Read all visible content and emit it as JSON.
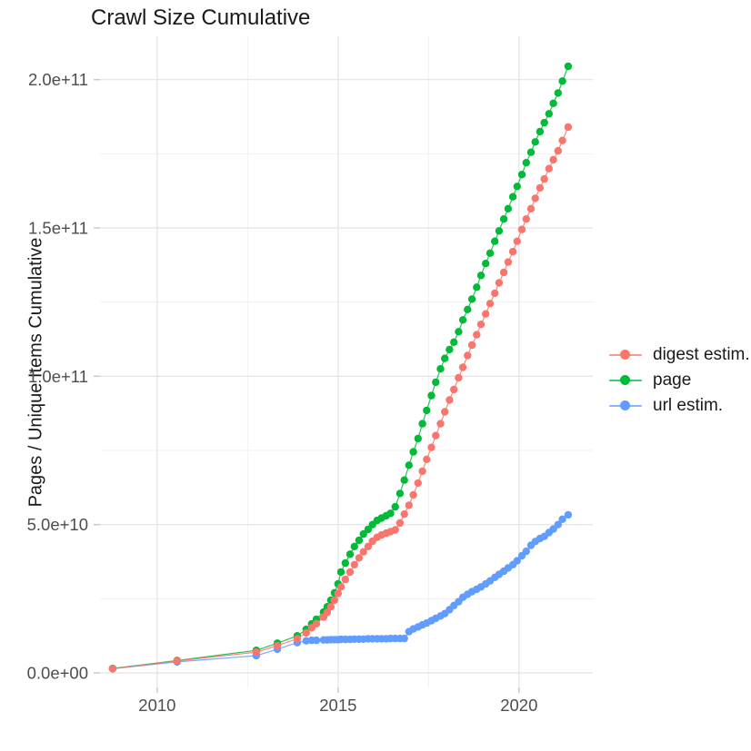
{
  "title": "Crawl Size Cumulative",
  "colors": {
    "digest": "#F8766D",
    "page": "#00BA38",
    "url": "#619CFF",
    "grid_major": "#e3e3e3",
    "grid_minor": "#f1f1f1",
    "tick_mark": "#c9c9c9",
    "tick_text": "#4d4d4d",
    "title_text": "#1a1a1a"
  },
  "chart_data": {
    "type": "line",
    "title": "Crawl Size Cumulative",
    "xlabel": "",
    "ylabel": "Pages / Unique Items Cumulative",
    "unit_note": "point values stored as [year, billions_of_items]; 50 = 5.0e+10",
    "grid": true,
    "legend_position": "right",
    "x_axis": {
      "ticks": [
        2010,
        2015,
        2020
      ],
      "tick_labels": [
        "2010",
        "2015",
        "2020"
      ],
      "minor_ticks": [
        2012.5,
        2017.5
      ],
      "range": [
        2008.42,
        2022.04
      ]
    },
    "y_axis": {
      "ticks_e9": [
        0,
        50,
        100,
        150,
        200
      ],
      "tick_labels": [
        "0.0e+00",
        "5.0e+10",
        "1.0e+11",
        "1.5e+11",
        "2.0e+11"
      ],
      "minor_ticks_e9": [
        25,
        75,
        125,
        175
      ],
      "range_e9": [
        -4.9,
        214.6
      ]
    },
    "draw_order": [
      "url estim.",
      "page",
      "digest estim."
    ],
    "series": [
      {
        "name": "digest estim.",
        "color": "#F8766D",
        "points": [
          [
            2008.77,
            1.4
          ],
          [
            2010.55,
            4.0
          ],
          [
            2012.74,
            7.0
          ],
          [
            2013.32,
            9.2
          ],
          [
            2013.87,
            11.5
          ],
          [
            2014.12,
            13.5
          ],
          [
            2014.27,
            15.2
          ],
          [
            2014.4,
            16.6
          ],
          [
            2014.6,
            18.8
          ],
          [
            2014.7,
            20.4
          ],
          [
            2014.8,
            22.3
          ],
          [
            2014.9,
            24.5
          ],
          [
            2015.0,
            26.8
          ],
          [
            2015.08,
            29
          ],
          [
            2015.2,
            31.5
          ],
          [
            2015.33,
            34
          ],
          [
            2015.45,
            36.5
          ],
          [
            2015.58,
            38.8
          ],
          [
            2015.7,
            40.8
          ],
          [
            2015.83,
            42.6
          ],
          [
            2015.95,
            44.4
          ],
          [
            2016.08,
            45.7
          ],
          [
            2016.2,
            46.5
          ],
          [
            2016.33,
            47.1
          ],
          [
            2016.45,
            47.6
          ],
          [
            2016.58,
            48.2
          ],
          [
            2016.71,
            50.5
          ],
          [
            2016.83,
            53.5
          ],
          [
            2016.96,
            56.5
          ],
          [
            2017.08,
            60
          ],
          [
            2017.21,
            64
          ],
          [
            2017.33,
            68
          ],
          [
            2017.45,
            72
          ],
          [
            2017.58,
            76
          ],
          [
            2017.7,
            80
          ],
          [
            2017.83,
            84
          ],
          [
            2017.95,
            88
          ],
          [
            2018.08,
            92
          ],
          [
            2018.2,
            95.5
          ],
          [
            2018.33,
            99.5
          ],
          [
            2018.45,
            103
          ],
          [
            2018.58,
            107
          ],
          [
            2018.7,
            110.5
          ],
          [
            2018.83,
            114
          ],
          [
            2018.95,
            117.5
          ],
          [
            2019.08,
            121
          ],
          [
            2019.2,
            124.5
          ],
          [
            2019.33,
            128
          ],
          [
            2019.45,
            131.5
          ],
          [
            2019.58,
            135
          ],
          [
            2019.7,
            138.5
          ],
          [
            2019.83,
            142
          ],
          [
            2019.95,
            145.5
          ],
          [
            2020.08,
            149.5
          ],
          [
            2020.2,
            153
          ],
          [
            2020.33,
            156.5
          ],
          [
            2020.45,
            160
          ],
          [
            2020.58,
            163.5
          ],
          [
            2020.7,
            166.5
          ],
          [
            2020.83,
            170
          ],
          [
            2020.95,
            173
          ],
          [
            2021.08,
            176
          ],
          [
            2021.2,
            179.5
          ],
          [
            2021.36,
            184
          ]
        ]
      },
      {
        "name": "page",
        "color": "#00BA38",
        "points": [
          [
            2008.77,
            1.5
          ],
          [
            2010.55,
            4.2
          ],
          [
            2012.74,
            7.6
          ],
          [
            2013.32,
            10
          ],
          [
            2013.87,
            12.5
          ],
          [
            2014.12,
            14.7
          ],
          [
            2014.27,
            16.5
          ],
          [
            2014.4,
            18.1
          ],
          [
            2014.6,
            20.5
          ],
          [
            2014.7,
            22.3
          ],
          [
            2014.8,
            24.5
          ],
          [
            2014.9,
            27
          ],
          [
            2015.0,
            30
          ],
          [
            2015.08,
            34
          ],
          [
            2015.2,
            37
          ],
          [
            2015.33,
            40
          ],
          [
            2015.45,
            42.6
          ],
          [
            2015.58,
            44.7
          ],
          [
            2015.7,
            46.8
          ],
          [
            2015.83,
            48.4
          ],
          [
            2015.95,
            50
          ],
          [
            2016.08,
            51.4
          ],
          [
            2016.2,
            52.2
          ],
          [
            2016.33,
            53
          ],
          [
            2016.45,
            53.8
          ],
          [
            2016.58,
            56
          ],
          [
            2016.71,
            60.5
          ],
          [
            2016.83,
            65
          ],
          [
            2016.96,
            70
          ],
          [
            2017.08,
            74.5
          ],
          [
            2017.21,
            79
          ],
          [
            2017.33,
            84
          ],
          [
            2017.45,
            88.5
          ],
          [
            2017.58,
            93.5
          ],
          [
            2017.7,
            98
          ],
          [
            2017.83,
            102.5
          ],
          [
            2017.95,
            106
          ],
          [
            2018.08,
            109
          ],
          [
            2018.2,
            111.5
          ],
          [
            2018.33,
            115
          ],
          [
            2018.45,
            119
          ],
          [
            2018.58,
            122.5
          ],
          [
            2018.7,
            126
          ],
          [
            2018.83,
            130
          ],
          [
            2018.95,
            134
          ],
          [
            2019.08,
            138
          ],
          [
            2019.2,
            141.5
          ],
          [
            2019.33,
            145.5
          ],
          [
            2019.45,
            149
          ],
          [
            2019.58,
            153
          ],
          [
            2019.7,
            156.5
          ],
          [
            2019.83,
            160.5
          ],
          [
            2019.95,
            164
          ],
          [
            2020.08,
            168
          ],
          [
            2020.2,
            172
          ],
          [
            2020.33,
            175.5
          ],
          [
            2020.45,
            179
          ],
          [
            2020.58,
            182.5
          ],
          [
            2020.7,
            185.5
          ],
          [
            2020.83,
            188.5
          ],
          [
            2020.95,
            192
          ],
          [
            2021.08,
            195.5
          ],
          [
            2021.2,
            199.5
          ],
          [
            2021.36,
            204.5
          ]
        ]
      },
      {
        "name": "url estim.",
        "color": "#619CFF",
        "points": [
          [
            2008.77,
            1.4
          ],
          [
            2010.55,
            3.7
          ],
          [
            2012.74,
            5.8
          ],
          [
            2013.32,
            8.0
          ],
          [
            2013.87,
            10.2
          ],
          [
            2014.12,
            10.8
          ],
          [
            2014.27,
            11.0
          ],
          [
            2014.4,
            11.0
          ],
          [
            2014.6,
            11.1
          ],
          [
            2014.7,
            11.1
          ],
          [
            2014.8,
            11.2
          ],
          [
            2014.9,
            11.2
          ],
          [
            2015.0,
            11.2
          ],
          [
            2015.08,
            11.3
          ],
          [
            2015.2,
            11.3
          ],
          [
            2015.33,
            11.3
          ],
          [
            2015.45,
            11.4
          ],
          [
            2015.58,
            11.4
          ],
          [
            2015.7,
            11.4
          ],
          [
            2015.83,
            11.5
          ],
          [
            2015.95,
            11.5
          ],
          [
            2016.08,
            11.5
          ],
          [
            2016.2,
            11.5
          ],
          [
            2016.33,
            11.5
          ],
          [
            2016.45,
            11.6
          ],
          [
            2016.58,
            11.6
          ],
          [
            2016.71,
            11.6
          ],
          [
            2016.83,
            11.6
          ],
          [
            2016.96,
            13.9
          ],
          [
            2017.08,
            14.8
          ],
          [
            2017.21,
            15.5
          ],
          [
            2017.33,
            16.2
          ],
          [
            2017.45,
            16.8
          ],
          [
            2017.58,
            17.6
          ],
          [
            2017.7,
            18.4
          ],
          [
            2017.83,
            19.2
          ],
          [
            2017.95,
            20
          ],
          [
            2018.08,
            21.3
          ],
          [
            2018.2,
            22.7
          ],
          [
            2018.33,
            24
          ],
          [
            2018.45,
            25.5
          ],
          [
            2018.58,
            26.5
          ],
          [
            2018.7,
            27.4
          ],
          [
            2018.83,
            28.2
          ],
          [
            2018.95,
            29
          ],
          [
            2019.08,
            30
          ],
          [
            2019.2,
            31
          ],
          [
            2019.33,
            32.2
          ],
          [
            2019.45,
            33.2
          ],
          [
            2019.58,
            34.3
          ],
          [
            2019.7,
            35.4
          ],
          [
            2019.83,
            36.5
          ],
          [
            2019.95,
            37.8
          ],
          [
            2020.08,
            39.5
          ],
          [
            2020.2,
            41
          ],
          [
            2020.33,
            43
          ],
          [
            2020.45,
            44.3
          ],
          [
            2020.58,
            45.3
          ],
          [
            2020.7,
            46
          ],
          [
            2020.83,
            47.3
          ],
          [
            2020.95,
            48.5
          ],
          [
            2021.08,
            50
          ],
          [
            2021.2,
            51.8
          ],
          [
            2021.36,
            53.3
          ]
        ]
      }
    ]
  }
}
